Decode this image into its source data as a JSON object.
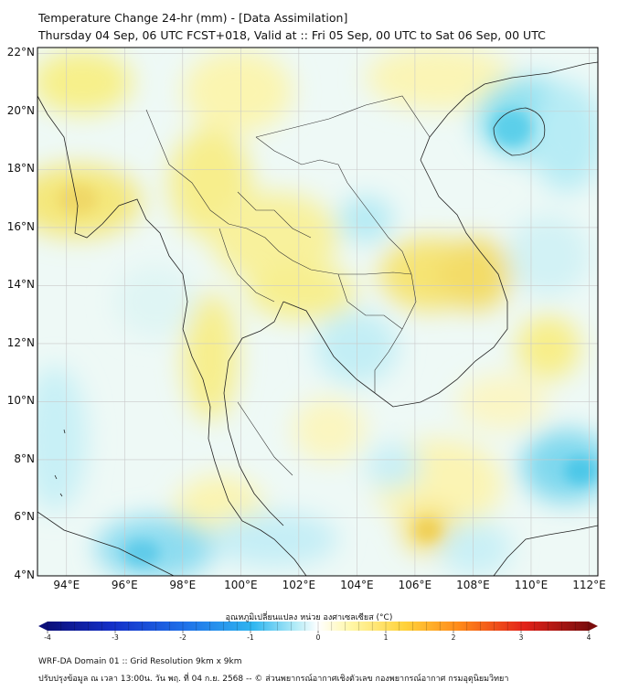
{
  "header": {
    "title_line1": "Temperature Change 24-hr (mm) - [Data Assimilation]",
    "title_line2": "Thursday 04 Sep, 06 UTC FCST+018, Valid at :: Fri 05 Sep, 00 UTC to Sat 06 Sep, 00 UTC"
  },
  "axes": {
    "lat_labels": [
      "22°N",
      "20°N",
      "18°N",
      "16°N",
      "14°N",
      "12°N",
      "10°N",
      "8°N",
      "6°N",
      "4°N"
    ],
    "lon_labels": [
      "94°E",
      "96°E",
      "98°E",
      "100°E",
      "102°E",
      "104°E",
      "106°E",
      "108°E",
      "110°E",
      "112°E"
    ],
    "lat_range": [
      4,
      22.2
    ],
    "lon_range": [
      93,
      112.3
    ],
    "grid": true
  },
  "colorbar": {
    "title": "อุณหภูมิเปลี่ยนแปลง หน่วย องศาเซลเซียส (°C)",
    "ticks": [
      "-4",
      "-3",
      "-2",
      "-1",
      "0",
      "1",
      "2",
      "3",
      "4"
    ],
    "range": [
      -4,
      4
    ],
    "colors": [
      "#0b0f7a",
      "#1430c8",
      "#1f6fe8",
      "#2fb6f0",
      "#9fe3f5",
      "#ffffff",
      "#fff7a8",
      "#ffd23a",
      "#ff8a1a",
      "#e3231a",
      "#7a0c0c"
    ]
  },
  "footer": {
    "line1": "WRF-DA Domain 01 :: Grid Resolution 9km x 9km",
    "line2": "ปรับปรุงข้อมูล ณ เวลา 13:00น. วัน พฤ. ที่ 04 ก.ย. 2568 -- © ส่วนพยากรณ์อากาศเชิงตัวเลข กองพยากรณ์อากาศ กรมอุตุนิยมวิทยา"
  }
}
